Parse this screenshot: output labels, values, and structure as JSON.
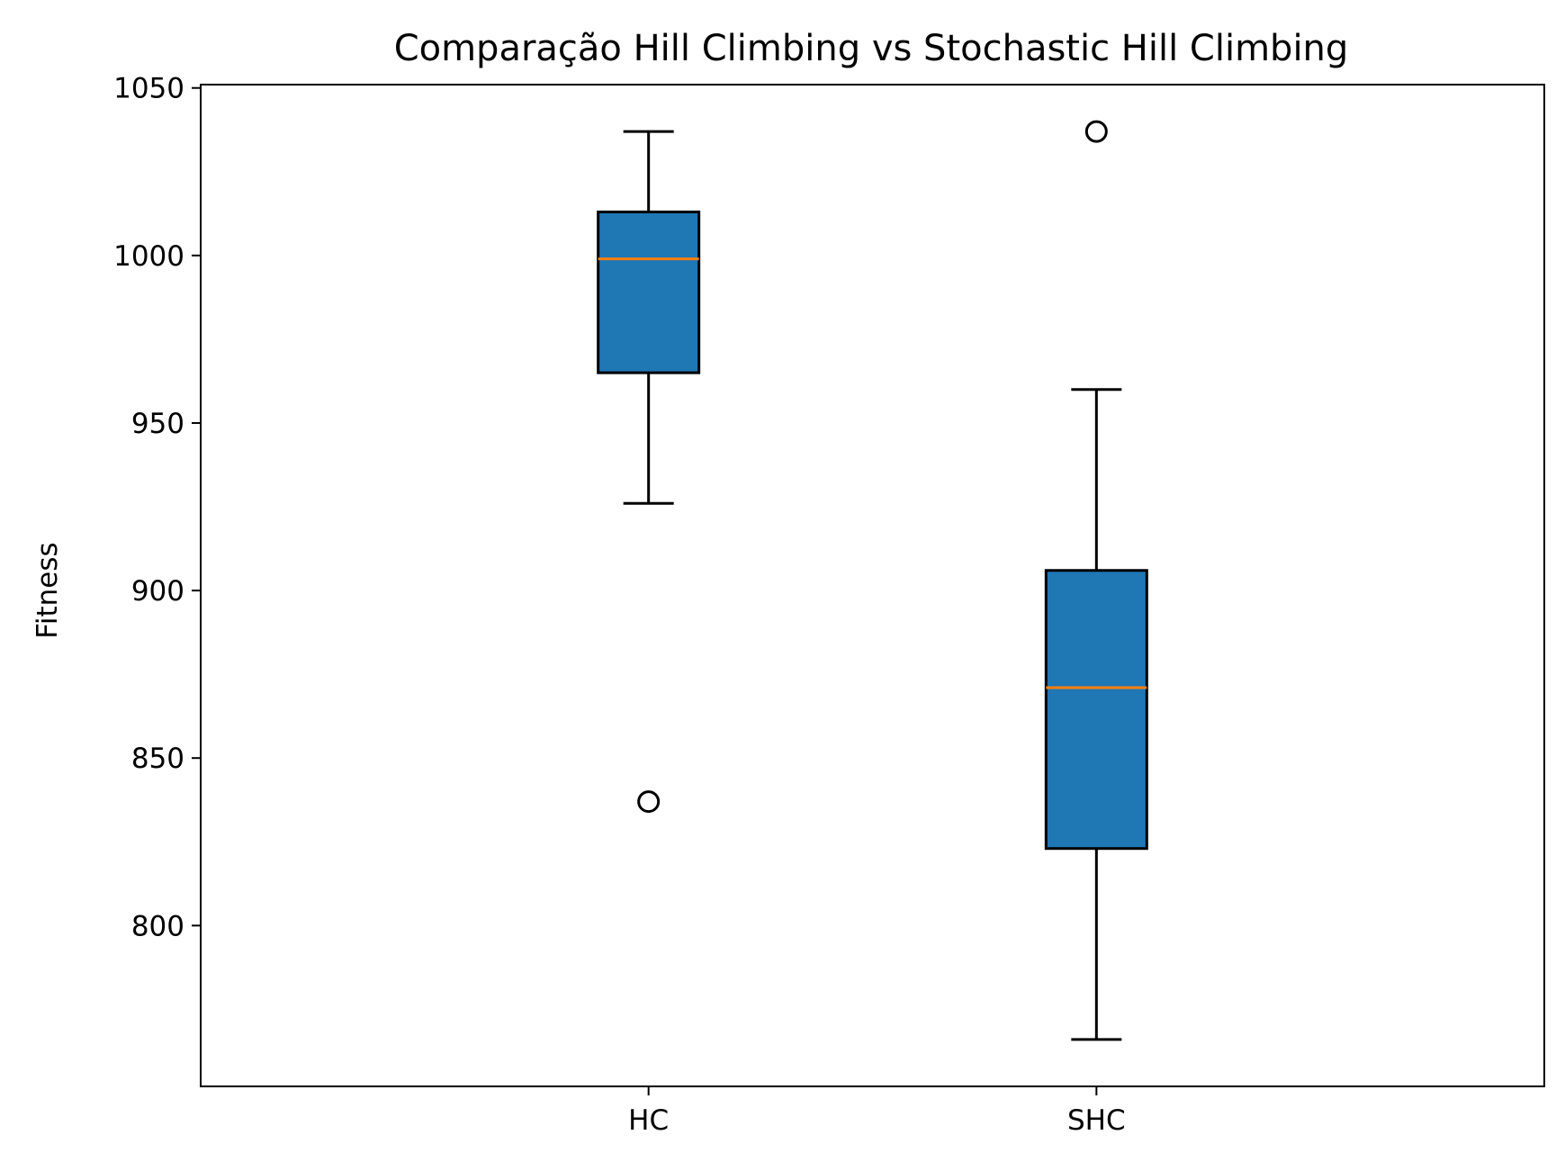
{
  "chart_data": {
    "type": "box",
    "title": "Comparação Hill Climbing vs Stochastic Hill Climbing",
    "xlabel": "",
    "ylabel": "Fitness",
    "ylim": [
      752,
      1051
    ],
    "yticks": [
      800,
      850,
      900,
      950,
      1000,
      1050
    ],
    "categories": [
      "HC",
      "SHC"
    ],
    "boxes": [
      {
        "label": "HC",
        "whisker_low": 926,
        "q1": 965,
        "median": 999,
        "q3": 1013,
        "whisker_high": 1037,
        "outliers": [
          837
        ]
      },
      {
        "label": "SHC",
        "whisker_low": 766,
        "q1": 823,
        "median": 871,
        "q3": 906,
        "whisker_high": 960,
        "outliers": [
          1037
        ]
      }
    ],
    "box_color": "#1f77b4",
    "median_color": "#ff7f0e",
    "grid": false,
    "legend": "none"
  }
}
